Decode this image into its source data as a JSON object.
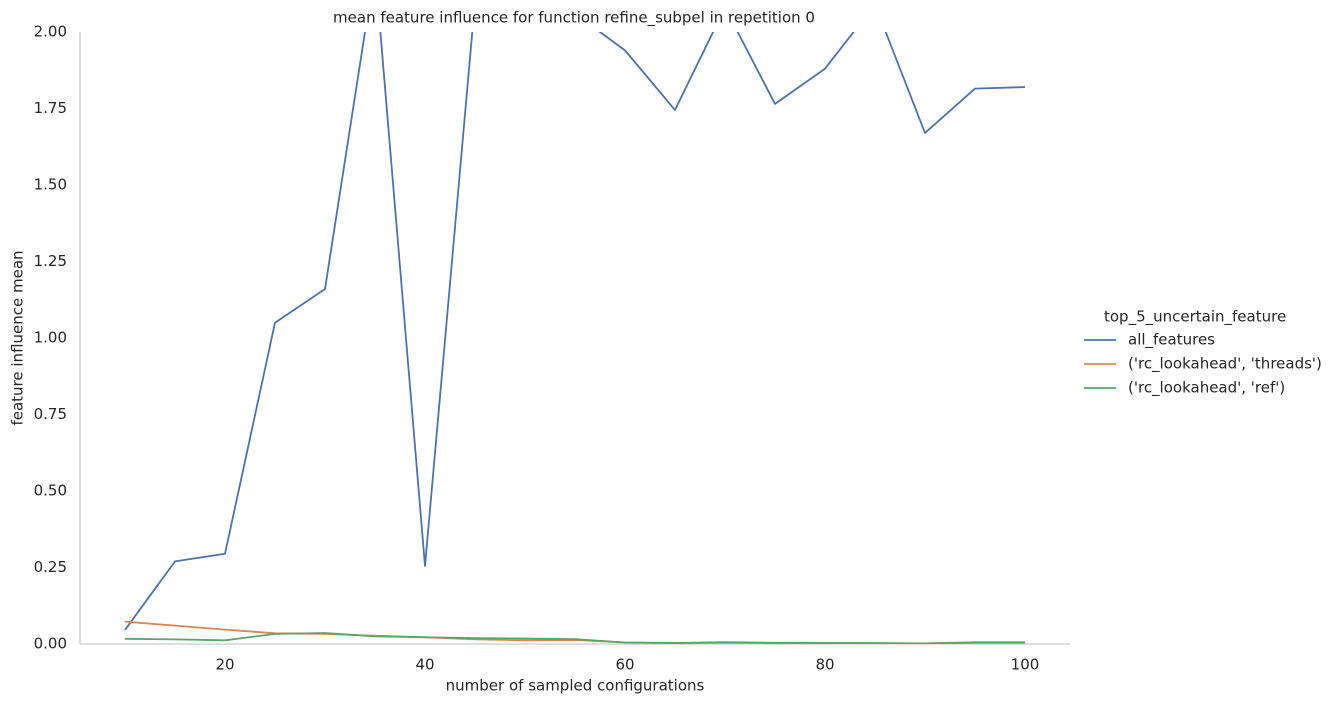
{
  "chart_data": {
    "type": "line",
    "title": "mean feature influence for function refine_subpel in repetition 0",
    "x_label": "number of sampled configurations",
    "y_label": "feature influence mean",
    "legend_title": "top_5_uncertain_feature",
    "legend_position": "right",
    "grid": false,
    "x": [
      10,
      15,
      20,
      25,
      30,
      35,
      40,
      45,
      50,
      55,
      60,
      65,
      70,
      75,
      80,
      85,
      90,
      95,
      100
    ],
    "series": [
      {
        "name": "all_features",
        "color": "#4c72b0",
        "values": [
          0.046,
          0.27,
          0.295,
          1.05,
          1.16,
          2.21,
          0.255,
          2.1,
          2.3,
          2.06,
          1.94,
          1.745,
          2.08,
          1.765,
          1.88,
          2.09,
          1.67,
          1.815,
          1.82
        ]
      },
      {
        "name": "('rc_lookahead', 'threads')",
        "color": "#dd8452",
        "values": [
          0.073,
          0.06,
          0.047,
          0.035,
          0.033,
          0.027,
          0.022,
          0.015,
          0.012,
          0.013,
          0.005,
          0.003,
          0.004,
          0.003,
          0.003,
          0.002,
          0.002,
          0.006,
          0.006
        ]
      },
      {
        "name": "('rc_lookahead', 'ref')",
        "color": "#55a868",
        "values": [
          0.017,
          0.015,
          0.012,
          0.033,
          0.036,
          0.025,
          0.022,
          0.019,
          0.018,
          0.016,
          0.005,
          0.003,
          0.006,
          0.004,
          0.003,
          0.003,
          0.002,
          0.004,
          0.004
        ]
      }
    ],
    "xlim": [
      5.5,
      104.5
    ],
    "xticks": [
      20,
      40,
      60,
      80,
      100
    ],
    "ylim": [
      0,
      2
    ],
    "yticks": [
      {
        "value": 0,
        "label": "0.00"
      },
      {
        "value": 0.25,
        "label": "0.25"
      },
      {
        "value": 0.5,
        "label": "0.50"
      },
      {
        "value": 0.75,
        "label": "0.75"
      },
      {
        "value": 1,
        "label": "1.00"
      },
      {
        "value": 1.25,
        "label": "1.25"
      },
      {
        "value": 1.5,
        "label": "1.50"
      },
      {
        "value": 1.75,
        "label": "1.75"
      },
      {
        "value": 2,
        "label": "2.00"
      }
    ]
  }
}
